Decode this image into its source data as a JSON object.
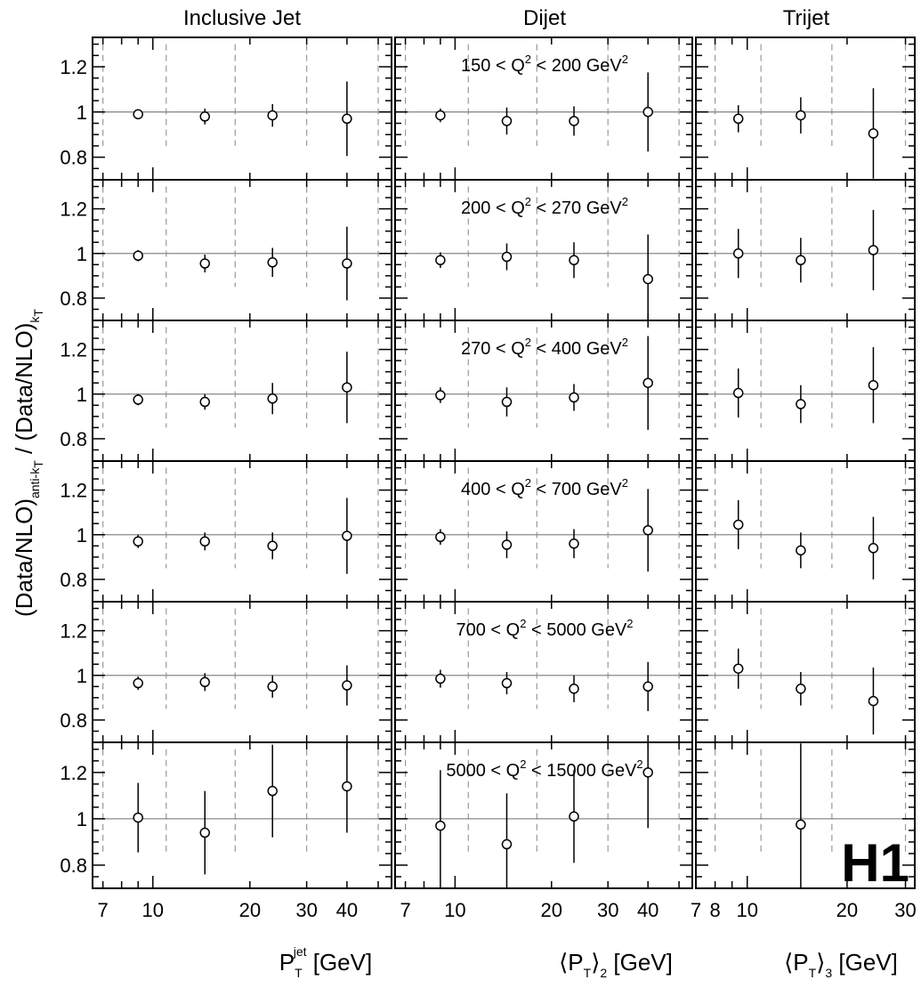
{
  "figure": {
    "logo": "H1",
    "y_label": {
      "main": "(Data/NLO)",
      "sub1": "anti-k",
      "sub1_sub": "T",
      "mid": " / (Data/NLO)",
      "sub2": "k",
      "sub2_sub": "T"
    }
  },
  "chart_data": {
    "type": "scatter",
    "grid": false,
    "reference_line": 1.0,
    "ylim": [
      0.7,
      1.33
    ],
    "y_ticks": [
      0.8,
      1.0,
      1.2
    ],
    "y_tick_labels": [
      "0.8",
      "1",
      "1.2"
    ],
    "columns": [
      {
        "title": "Inclusive Jet",
        "xlabel_main": "P",
        "xlabel_sub": "T",
        "xlabel_sup": "jet",
        "xlabel_tail": " [GeV]",
        "xscale": "log",
        "xlim": [
          6.5,
          55
        ],
        "x_tick_labels": [
          {
            "v": 7,
            "t": "7"
          },
          {
            "v": 10,
            "t": "10"
          },
          {
            "v": 20,
            "t": "20"
          },
          {
            "v": 30,
            "t": "30"
          },
          {
            "v": 40,
            "t": "40"
          }
        ],
        "bin_edges": [
          7,
          11,
          18,
          30,
          50
        ]
      },
      {
        "title": "Dijet",
        "xlabel_main": "⟨P",
        "xlabel_sub": "T",
        "xlabel_tail": "⟩",
        "xlabel_sub2": "2",
        "xlabel_end": " [GeV]",
        "xscale": "log",
        "xlim": [
          6.5,
          55
        ],
        "x_tick_labels": [
          {
            "v": 7,
            "t": "7"
          },
          {
            "v": 10,
            "t": "10"
          },
          {
            "v": 20,
            "t": "20"
          },
          {
            "v": 30,
            "t": "30"
          },
          {
            "v": 40,
            "t": "40"
          }
        ],
        "bin_edges": [
          7,
          11,
          18,
          30,
          50
        ]
      },
      {
        "title": "Trijet",
        "xlabel_main": "⟨P",
        "xlabel_sub": "T",
        "xlabel_tail": "⟩",
        "xlabel_sub2": "3",
        "xlabel_end": " [GeV]",
        "xscale": "log",
        "xlim": [
          7,
          32
        ],
        "x_tick_labels": [
          {
            "v": 7,
            "t": "7"
          },
          {
            "v": 8,
            "t": "8"
          },
          {
            "v": 10,
            "t": "10"
          },
          {
            "v": 20,
            "t": "20"
          },
          {
            "v": 30,
            "t": "30"
          }
        ],
        "bin_edges": [
          8,
          11,
          18,
          30
        ]
      }
    ],
    "rows": [
      {
        "q2_label": {
          "lo": "150",
          "hi": "200",
          "unit": "GeV"
        },
        "series": [
          {
            "x": [
              9,
              14.5,
              23.5,
              40
            ],
            "y": [
              0.99,
              0.98,
              0.985,
              0.97
            ],
            "err": [
              0.02,
              0.035,
              0.05,
              0.165
            ]
          },
          {
            "x": [
              9,
              14.5,
              23.5,
              40
            ],
            "y": [
              0.985,
              0.96,
              0.96,
              1.0
            ],
            "err": [
              0.03,
              0.06,
              0.065,
              0.175
            ]
          },
          {
            "x": [
              9.4,
              14.5,
              24
            ],
            "y": [
              0.97,
              0.985,
              0.905
            ],
            "err": [
              0.06,
              0.08,
              0.2
            ]
          }
        ]
      },
      {
        "q2_label": {
          "lo": "200",
          "hi": "270",
          "unit": "GeV"
        },
        "series": [
          {
            "x": [
              9,
              14.5,
              23.5,
              40
            ],
            "y": [
              0.99,
              0.955,
              0.96,
              0.955
            ],
            "err": [
              0.025,
              0.04,
              0.065,
              0.165
            ]
          },
          {
            "x": [
              9,
              14.5,
              23.5,
              40
            ],
            "y": [
              0.97,
              0.985,
              0.97,
              0.885
            ],
            "err": [
              0.035,
              0.06,
              0.08,
              0.2
            ]
          },
          {
            "x": [
              9.4,
              14.5,
              24
            ],
            "y": [
              1.0,
              0.97,
              1.015
            ],
            "err": [
              0.11,
              0.1,
              0.18
            ]
          }
        ]
      },
      {
        "q2_label": {
          "lo": "270",
          "hi": "400",
          "unit": "GeV"
        },
        "series": [
          {
            "x": [
              9,
              14.5,
              23.5,
              40
            ],
            "y": [
              0.975,
              0.965,
              0.98,
              1.03
            ],
            "err": [
              0.025,
              0.035,
              0.07,
              0.16
            ]
          },
          {
            "x": [
              9,
              14.5,
              23.5,
              40
            ],
            "y": [
              0.995,
              0.965,
              0.985,
              1.05
            ],
            "err": [
              0.035,
              0.065,
              0.06,
              0.21
            ]
          },
          {
            "x": [
              9.4,
              14.5,
              24
            ],
            "y": [
              1.005,
              0.955,
              1.04
            ],
            "err": [
              0.11,
              0.085,
              0.17
            ]
          }
        ]
      },
      {
        "q2_label": {
          "lo": "400",
          "hi": "700",
          "unit": "GeV"
        },
        "series": [
          {
            "x": [
              9,
              14.5,
              23.5,
              40
            ],
            "y": [
              0.97,
              0.97,
              0.95,
              0.995
            ],
            "err": [
              0.03,
              0.04,
              0.06,
              0.17
            ]
          },
          {
            "x": [
              9,
              14.5,
              23.5,
              40
            ],
            "y": [
              0.99,
              0.955,
              0.96,
              1.02
            ],
            "err": [
              0.035,
              0.06,
              0.065,
              0.185
            ]
          },
          {
            "x": [
              9.4,
              14.5,
              24
            ],
            "y": [
              1.045,
              0.93,
              0.94
            ],
            "err": [
              0.11,
              0.08,
              0.14
            ]
          }
        ]
      },
      {
        "q2_label": {
          "lo": "700",
          "hi": "5000",
          "unit": "GeV"
        },
        "series": [
          {
            "x": [
              9,
              14.5,
              23.5,
              40
            ],
            "y": [
              0.965,
              0.97,
              0.95,
              0.955
            ],
            "err": [
              0.03,
              0.04,
              0.05,
              0.09
            ]
          },
          {
            "x": [
              9,
              14.5,
              23.5,
              40
            ],
            "y": [
              0.985,
              0.965,
              0.94,
              0.95
            ],
            "err": [
              0.04,
              0.05,
              0.06,
              0.11
            ]
          },
          {
            "x": [
              9.4,
              14.5,
              24
            ],
            "y": [
              1.03,
              0.94,
              0.885
            ],
            "err": [
              0.09,
              0.075,
              0.15
            ]
          }
        ]
      },
      {
        "q2_label": {
          "lo": "5000",
          "hi": "15000",
          "unit": "GeV"
        },
        "series": [
          {
            "x": [
              9,
              14.5,
              23.5,
              40
            ],
            "y": [
              1.005,
              0.94,
              1.12,
              1.14
            ],
            "err": [
              0.15,
              0.18,
              0.2,
              0.2
            ]
          },
          {
            "x": [
              9,
              14.5,
              23.5,
              40
            ],
            "y": [
              0.97,
              0.89,
              1.01,
              1.2
            ],
            "err": [
              0.24,
              0.22,
              0.2,
              0.24
            ]
          },
          {
            "x": [
              14.5
            ],
            "y": [
              0.975
            ],
            "err": [
              0.35
            ]
          }
        ]
      }
    ]
  }
}
